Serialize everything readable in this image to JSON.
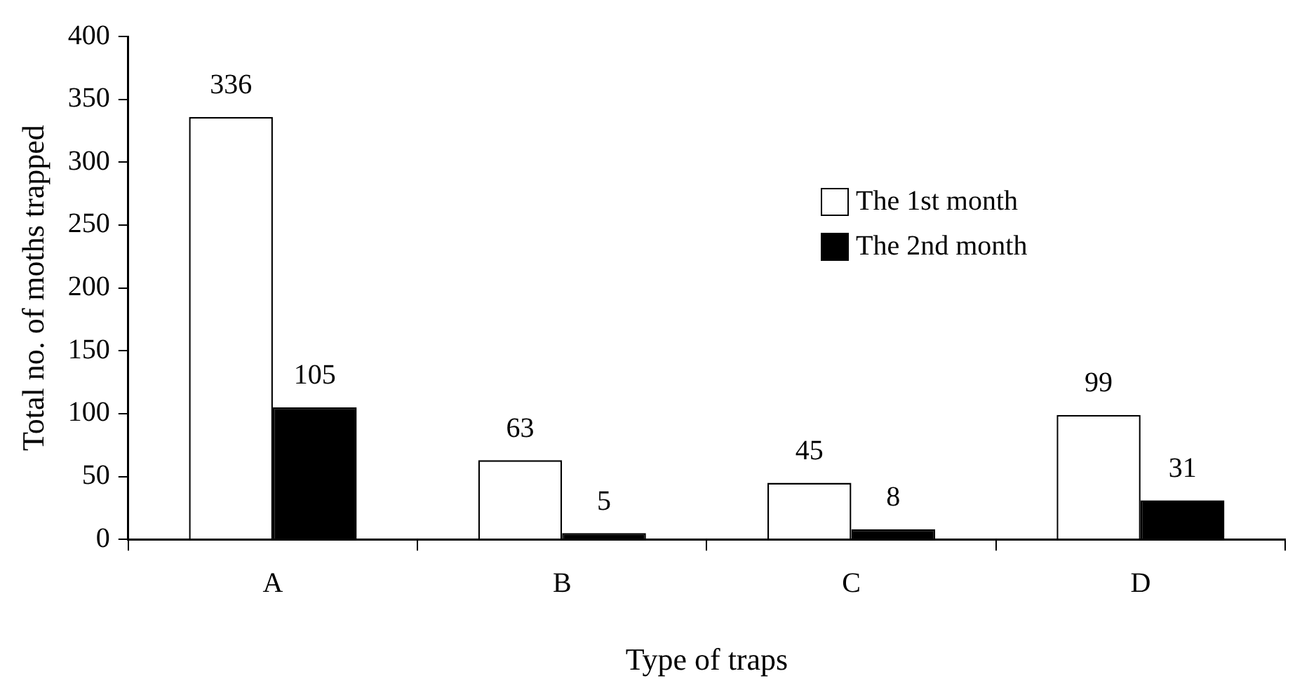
{
  "chart_data": {
    "type": "bar",
    "xlabel": "Type of traps",
    "ylabel": "Total no. of moths trapped",
    "categories": [
      "A",
      "B",
      "C",
      "D"
    ],
    "series": [
      {
        "name": "The 1st month",
        "color": "#ffffff",
        "values": [
          336,
          63,
          45,
          99
        ]
      },
      {
        "name": "The 2nd month",
        "color": "#000000",
        "values": [
          105,
          5,
          8,
          31
        ]
      }
    ],
    "ylim": [
      0,
      400
    ],
    "yticks": [
      0,
      50,
      100,
      150,
      200,
      250,
      300,
      350,
      400
    ],
    "grid": false,
    "legend": "top right",
    "data_labels": true
  }
}
